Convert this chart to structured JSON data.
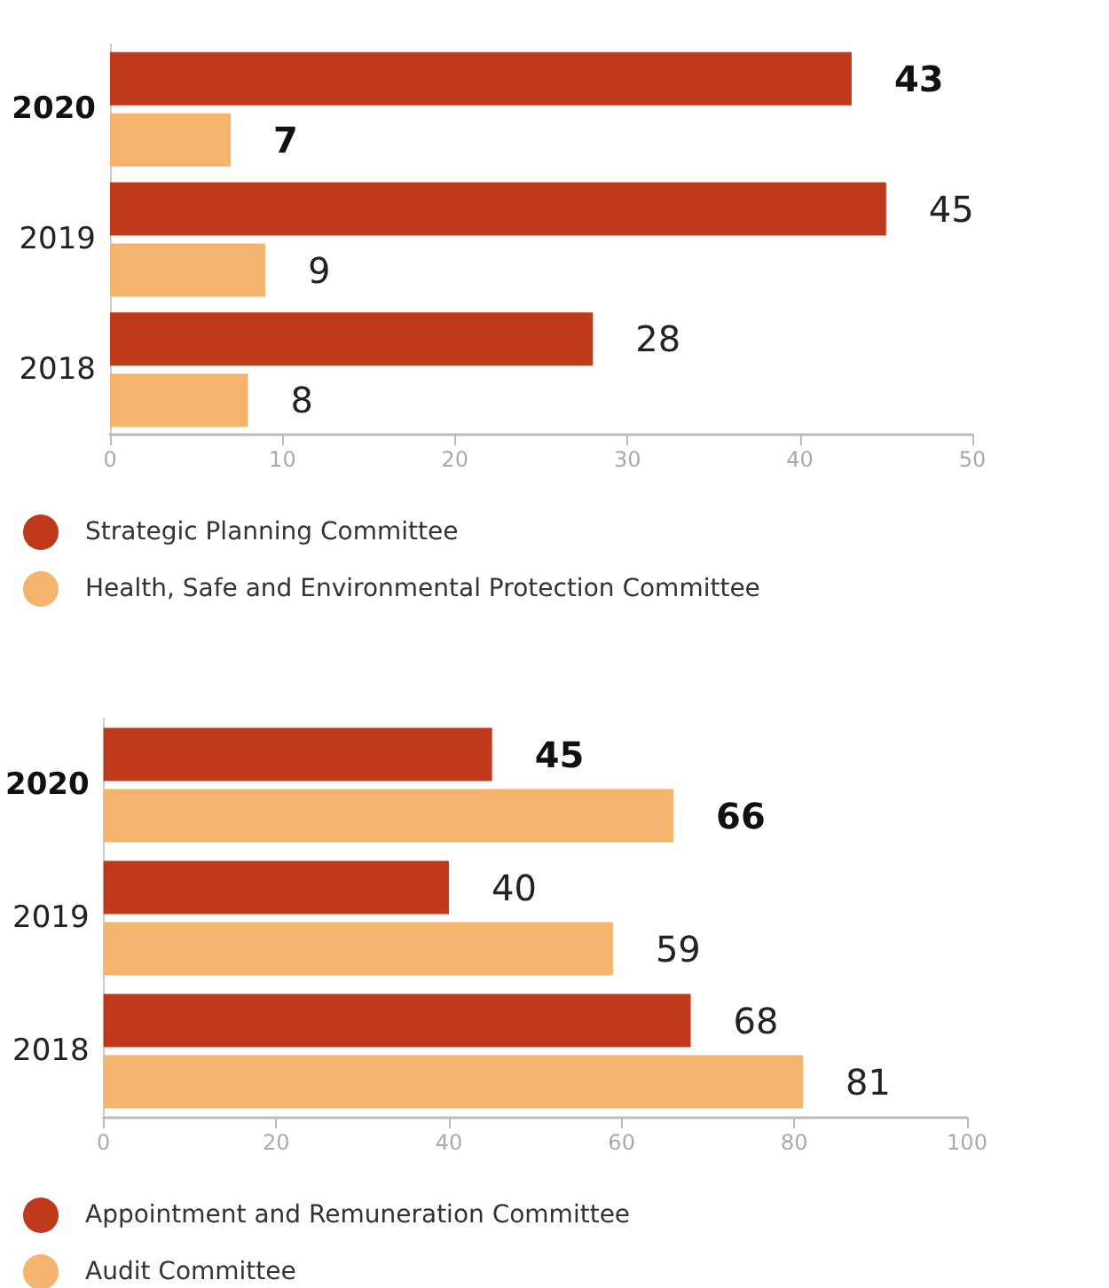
{
  "chart_data": [
    {
      "type": "bar",
      "orientation": "horizontal",
      "categories": [
        "2020",
        "2019",
        "2018"
      ],
      "series": [
        {
          "name": "Strategic Planning Committee",
          "color": "#c0391a",
          "values": [
            43,
            45,
            28
          ]
        },
        {
          "name": "Health, Safe and Environmental Protection Committee",
          "color": "#f4b46e",
          "values": [
            7,
            9,
            8
          ]
        }
      ],
      "xlim": [
        0,
        50
      ],
      "xticks": [
        0,
        10,
        20,
        30,
        40,
        50
      ],
      "data_labels": true,
      "grid": false,
      "legend": "bottom left"
    },
    {
      "type": "bar",
      "orientation": "horizontal",
      "categories": [
        "2020",
        "2019",
        "2018"
      ],
      "series": [
        {
          "name": "Appointment and Remuneration Committee",
          "color": "#c0391a",
          "values": [
            45,
            40,
            68
          ]
        },
        {
          "name": "Audit Committee",
          "color": "#f4b46e",
          "values": [
            66,
            59,
            81
          ]
        }
      ],
      "xlim": [
        0,
        100
      ],
      "xticks": [
        0,
        20,
        40,
        60,
        80,
        100
      ],
      "data_labels": true,
      "grid": false,
      "legend": "bottom left"
    }
  ]
}
